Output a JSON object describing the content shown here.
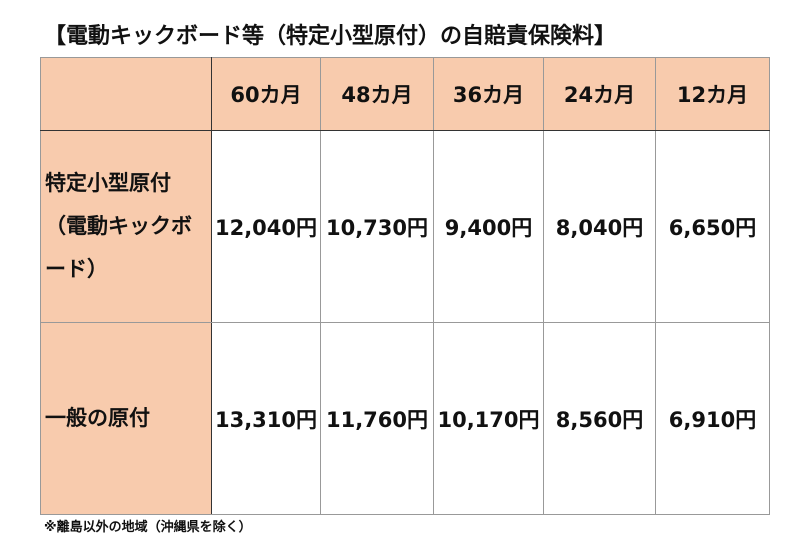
{
  "title": "【電動キックボード等（特定小型原付）の自賠責保険料】",
  "table": {
    "headers": [
      "",
      "60カ月",
      "48カ月",
      "36カ月",
      "24カ月",
      "12カ月"
    ],
    "rows": [
      {
        "label": "特定小型原付（電動キックボード）",
        "values": [
          "12,040円",
          "10,730円",
          "9,400円",
          "8,040円",
          "6,650円"
        ]
      },
      {
        "label": "一般の原付",
        "values": [
          "13,310円",
          "11,760円",
          "10,170円",
          "8,560円",
          "6,910円"
        ]
      }
    ]
  },
  "footnote": "※離島以外の地域（沖縄県を除く）",
  "colors": {
    "header_fill": "#F8CBAD"
  }
}
